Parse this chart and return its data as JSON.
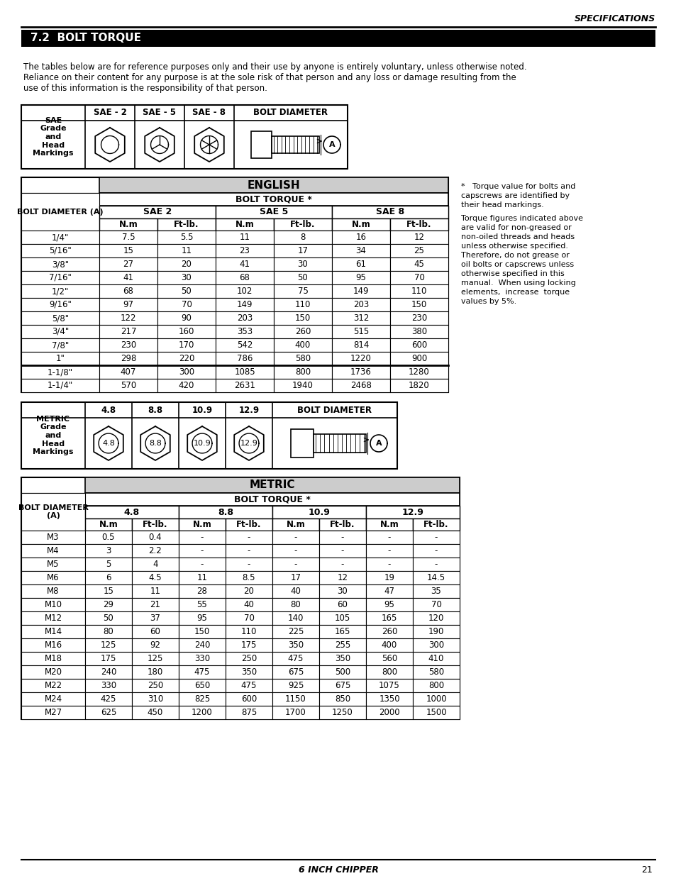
{
  "page_title": "SPECIFICATIONS",
  "section_title": "7.2  BOLT TORQUE",
  "disclaimer_lines": [
    "The tables below are for reference purposes only and their use by anyone is entirely voluntary, unless otherwise noted.",
    "Reliance on their content for any purpose is at the sole risk of that person and any loss or damage resulting from the",
    "use of this information is the responsibility of that person."
  ],
  "note1_lines": [
    "*   Torque value for bolts and",
    "capscrews are identified by",
    "their head markings."
  ],
  "note2_lines": [
    "Torque figures indicated above",
    "are valid for non-greased or",
    "non-oiled threads and heads",
    "unless otherwise specified.",
    "Therefore, do not grease or",
    "oil bolts or capscrews unless",
    "otherwise specified in this",
    "manual.  When using locking",
    "elements,  increase  torque",
    "values by 5%."
  ],
  "english_table_title": "ENGLISH",
  "english_bolt_torque_label": "BOLT TORQUE *",
  "english_rows": [
    [
      "1/4\"",
      "7.5",
      "5.5",
      "11",
      "8",
      "16",
      "12"
    ],
    [
      "5/16\"",
      "15",
      "11",
      "23",
      "17",
      "34",
      "25"
    ],
    [
      "3/8\"",
      "27",
      "20",
      "41",
      "30",
      "61",
      "45"
    ],
    [
      "7/16\"",
      "41",
      "30",
      "68",
      "50",
      "95",
      "70"
    ],
    [
      "1/2\"",
      "68",
      "50",
      "102",
      "75",
      "149",
      "110"
    ],
    [
      "9/16\"",
      "97",
      "70",
      "149",
      "110",
      "203",
      "150"
    ],
    [
      "5/8\"",
      "122",
      "90",
      "203",
      "150",
      "312",
      "230"
    ],
    [
      "3/4\"",
      "217",
      "160",
      "353",
      "260",
      "515",
      "380"
    ],
    [
      "7/8\"",
      "230",
      "170",
      "542",
      "400",
      "814",
      "600"
    ],
    [
      "1\"",
      "298",
      "220",
      "786",
      "580",
      "1220",
      "900"
    ],
    [
      "1-1/8\"",
      "407",
      "300",
      "1085",
      "800",
      "1736",
      "1280"
    ],
    [
      "1-1/4\"",
      "570",
      "420",
      "2631",
      "1940",
      "2468",
      "1820"
    ]
  ],
  "metric_table_title": "METRIC",
  "metric_bolt_torque_label": "BOLT TORQUE *",
  "metric_rows": [
    [
      "M3",
      "0.5",
      "0.4",
      "-",
      "-",
      "-",
      "-",
      "-",
      "-"
    ],
    [
      "M4",
      "3",
      "2.2",
      "-",
      "-",
      "-",
      "-",
      "-",
      "-"
    ],
    [
      "M5",
      "5",
      "4",
      "-",
      "-",
      "-",
      "-",
      "-",
      "-"
    ],
    [
      "M6",
      "6",
      "4.5",
      "11",
      "8.5",
      "17",
      "12",
      "19",
      "14.5"
    ],
    [
      "M8",
      "15",
      "11",
      "28",
      "20",
      "40",
      "30",
      "47",
      "35"
    ],
    [
      "M10",
      "29",
      "21",
      "55",
      "40",
      "80",
      "60",
      "95",
      "70"
    ],
    [
      "M12",
      "50",
      "37",
      "95",
      "70",
      "140",
      "105",
      "165",
      "120"
    ],
    [
      "M14",
      "80",
      "60",
      "150",
      "110",
      "225",
      "165",
      "260",
      "190"
    ],
    [
      "M16",
      "125",
      "92",
      "240",
      "175",
      "350",
      "255",
      "400",
      "300"
    ],
    [
      "M18",
      "175",
      "125",
      "330",
      "250",
      "475",
      "350",
      "560",
      "410"
    ],
    [
      "M20",
      "240",
      "180",
      "475",
      "350",
      "675",
      "500",
      "800",
      "580"
    ],
    [
      "M22",
      "330",
      "250",
      "650",
      "475",
      "925",
      "675",
      "1075",
      "800"
    ],
    [
      "M24",
      "425",
      "310",
      "825",
      "600",
      "1150",
      "850",
      "1350",
      "1000"
    ],
    [
      "M27",
      "625",
      "450",
      "1200",
      "875",
      "1700",
      "1250",
      "2000",
      "1500"
    ]
  ],
  "footer_text": "6 INCH CHIPPER",
  "page_number": "21"
}
